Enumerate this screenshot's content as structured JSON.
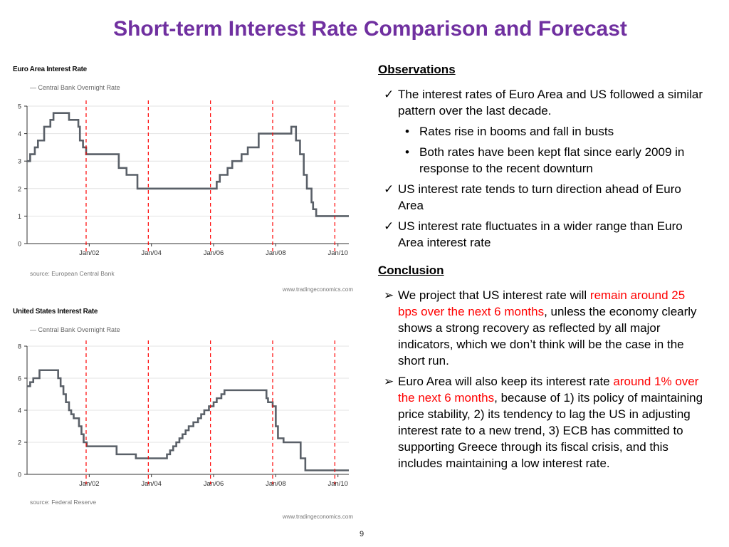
{
  "slide": {
    "title": "Short-term Interest Rate Comparison and Forecast",
    "page_number": "9"
  },
  "colors": {
    "title": "#7030a0",
    "line": "#5a6068",
    "marker_line": "#ff0000",
    "highlight": "#ff0000"
  },
  "observations": {
    "heading": "Observations",
    "items": [
      {
        "marker": "✓",
        "text": "The interest rates of Euro Area and US followed a similar pattern over the last decade."
      },
      {
        "marker": "•",
        "sub": true,
        "text": "Rates rise in booms and fall in busts"
      },
      {
        "marker": "•",
        "sub": true,
        "text": "Both rates have been kept flat since early 2009 in response to the recent downturn"
      },
      {
        "marker": "✓",
        "text": "US interest rate tends to turn direction ahead of Euro Area"
      },
      {
        "marker": "✓",
        "text": "US interest rate fluctuates in a wider range than Euro Area interest rate"
      }
    ]
  },
  "conclusion": {
    "heading": "Conclusion",
    "items": [
      {
        "marker": "➢",
        "before": "We project that US interest rate will ",
        "highlight": "remain around 25 bps over the next 6 months",
        "after": ", unless the economy clearly shows a strong recovery as reflected by all major indicators, which we don’t think will be the case in the short run."
      },
      {
        "marker": "➢",
        "before": "Euro Area will also keep its interest rate ",
        "highlight": "around 1% over the next 6 months",
        "after": ", because of 1) its policy of maintaining price stability, 2) its tendency to lag the US in adjusting interest rate to a new trend, 3) ECB has committed to supporting Greece through its fiscal crisis, and this includes maintaining a low interest rate."
      }
    ]
  },
  "chart_data": [
    {
      "type": "line",
      "title": "Euro Area Interest Rate",
      "legend": "Central Bank Overnight Rate",
      "source": "source: European Central Bank",
      "website": "www.tradingeconomics.com",
      "ylim": [
        0,
        5
      ],
      "yticks": [
        0,
        1,
        2,
        3,
        4,
        5
      ],
      "xlim": [
        2000.0,
        2010.35
      ],
      "xticks": [
        {
          "value": 2002,
          "label": "Jan/02"
        },
        {
          "value": 2004,
          "label": "Jan/04"
        },
        {
          "value": 2006,
          "label": "Jan/06"
        },
        {
          "value": 2008,
          "label": "Jan/08"
        },
        {
          "value": 2010,
          "label": "Jan/10"
        }
      ],
      "vertical_markers": [
        2001.9,
        2003.9,
        2005.9,
        2007.9,
        2009.9
      ],
      "grid": true,
      "legend_position": "top-left",
      "step": true,
      "series": [
        {
          "x": [
            2000.0,
            2000.1,
            2000.25,
            2000.35,
            2000.4,
            2000.55,
            2000.75,
            2000.85,
            2001.35,
            2001.65,
            2001.7,
            2001.8,
            2001.9,
            2002.95,
            2003.2,
            2003.45,
            2003.55,
            2005.9,
            2006.1,
            2006.2,
            2006.45,
            2006.6,
            2006.9,
            2007.1,
            2007.45,
            2008.5,
            2008.65,
            2008.78,
            2008.9,
            2009.0,
            2009.15,
            2009.2,
            2009.3,
            2009.4,
            2010.35
          ],
          "y": [
            3.0,
            3.25,
            3.5,
            3.75,
            3.75,
            4.25,
            4.5,
            4.75,
            4.5,
            4.25,
            3.75,
            3.5,
            3.25,
            2.75,
            2.5,
            2.5,
            2.0,
            2.0,
            2.25,
            2.5,
            2.75,
            3.0,
            3.25,
            3.5,
            4.0,
            4.25,
            3.75,
            3.25,
            2.5,
            2.0,
            1.5,
            1.25,
            1.0,
            1.0,
            1.0
          ]
        }
      ]
    },
    {
      "type": "line",
      "title": "United States Interest Rate",
      "legend": "Central Bank Overnight Rate",
      "source": "source: Federal Reserve",
      "website": "www.tradingeconomics.com",
      "ylim": [
        0,
        8
      ],
      "yticks": [
        0,
        2,
        4,
        6,
        8
      ],
      "xlim": [
        2000.0,
        2010.35
      ],
      "xticks": [
        {
          "value": 2002,
          "label": "Jan/02"
        },
        {
          "value": 2004,
          "label": "Jan/04"
        },
        {
          "value": 2006,
          "label": "Jan/06"
        },
        {
          "value": 2008,
          "label": "Jan/08"
        },
        {
          "value": 2010,
          "label": "Jan/10"
        }
      ],
      "vertical_markers": [
        2001.9,
        2003.9,
        2005.9,
        2007.9,
        2009.9
      ],
      "grid": true,
      "legend_position": "top-left",
      "step": true,
      "series": [
        {
          "x": [
            2000.0,
            2000.1,
            2000.2,
            2000.35,
            2000.4,
            2001.0,
            2001.08,
            2001.17,
            2001.25,
            2001.35,
            2001.42,
            2001.5,
            2001.67,
            2001.75,
            2001.82,
            2001.92,
            2002.88,
            2003.5,
            2004.5,
            2004.6,
            2004.7,
            2004.8,
            2004.9,
            2005.0,
            2005.1,
            2005.2,
            2005.35,
            2005.5,
            2005.6,
            2005.7,
            2005.85,
            2006.0,
            2006.1,
            2006.25,
            2006.35,
            2006.5,
            2007.7,
            2007.75,
            2007.9,
            2008.0,
            2008.07,
            2008.25,
            2008.35,
            2008.8,
            2008.95,
            2010.35
          ],
          "y": [
            5.5,
            5.75,
            6.0,
            6.0,
            6.5,
            6.0,
            5.5,
            5.0,
            4.5,
            4.0,
            3.75,
            3.5,
            3.0,
            2.5,
            2.0,
            1.75,
            1.25,
            1.0,
            1.25,
            1.5,
            1.75,
            2.0,
            2.25,
            2.5,
            2.75,
            3.0,
            3.25,
            3.5,
            3.75,
            4.0,
            4.25,
            4.5,
            4.75,
            5.0,
            5.25,
            5.25,
            4.75,
            4.5,
            4.25,
            3.0,
            2.25,
            2.0,
            2.0,
            1.0,
            0.25,
            0.25
          ]
        }
      ]
    }
  ]
}
